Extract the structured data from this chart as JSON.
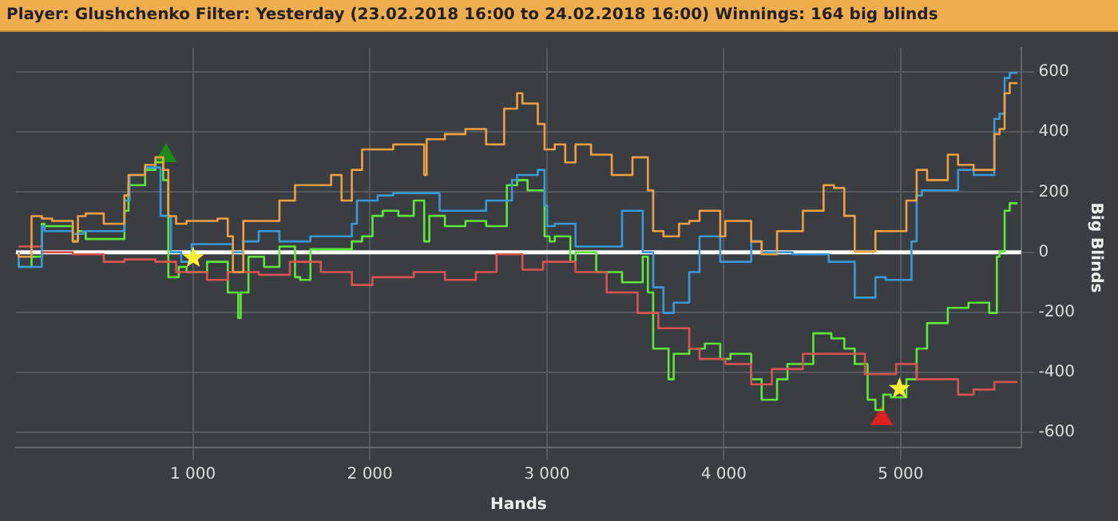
{
  "chart_data": {
    "type": "step",
    "title": "Player: Glushchenko Filter: Yesterday (23.02.2018 16:00 to 24.02.2018 16:00) Winnings: 164 big blinds",
    "xlabel": "Hands",
    "ylabel": "Big Blinds",
    "xlim": [
      0,
      5680
    ],
    "ylim": [
      -650,
      680
    ],
    "xticks": [
      {
        "value": 1000,
        "label": "1 000"
      },
      {
        "value": 2000,
        "label": "2 000"
      },
      {
        "value": 3000,
        "label": "3 000"
      },
      {
        "value": 4000,
        "label": "4 000"
      },
      {
        "value": 5000,
        "label": "5 000"
      }
    ],
    "yticks": [
      -600,
      -400,
      -200,
      0,
      200,
      400,
      600
    ],
    "grid": true,
    "legend": false,
    "ref_lines": [
      {
        "axis": "y",
        "value": 0,
        "color": "#ffffff"
      }
    ],
    "series": [
      {
        "color": "#f0a040",
        "x": [
          15,
          88,
          146,
          204,
          321,
          350,
          394,
          496,
          613,
          636,
          730,
          788,
          832,
          861,
          905,
          964,
          1139,
          1197,
          1226,
          1285,
          1372,
          1489,
          1577,
          1635,
          1781,
          1840,
          1898,
          1956,
          2132,
          2307,
          2321,
          2424,
          2540,
          2657,
          2759,
          2832,
          2862,
          2949,
          2987,
          3045,
          3104,
          3162,
          3250,
          3367,
          3484,
          3571,
          3601,
          3659,
          3747,
          3805,
          3863,
          3980,
          4009,
          4155,
          4214,
          4301,
          4447,
          4564,
          4623,
          4681,
          4740,
          4857,
          4915,
          5032,
          5090,
          5149,
          5266,
          5324,
          5412,
          5529,
          5558,
          5587,
          5616,
          5660
        ],
        "values": [
          0,
          -15,
          120,
          112,
          104,
          36,
          120,
          129,
          95,
          189,
          257,
          291,
          316,
          274,
          120,
          95,
          104,
          112,
          53,
          -66,
          104,
          104,
          172,
          223,
          223,
          257,
          172,
          274,
          342,
          359,
          257,
          376,
          393,
          410,
          359,
          478,
          529,
          495,
          427,
          342,
          359,
          299,
          359,
          325,
          257,
          316,
          206,
          70,
          53,
          95,
          104,
          138,
          53,
          104,
          36,
          -7,
          70,
          138,
          223,
          214,
          121,
          2,
          70,
          70,
          172,
          274,
          240,
          325,
          291,
          274,
          393,
          410,
          529,
          563
        ]
      },
      {
        "color": "#3a9ad9",
        "x": [
          15,
          58,
          146,
          161,
          321,
          380,
          613,
          642,
          730,
          817,
          876,
          934,
          993,
          1080,
          1226,
          1285,
          1372,
          1489,
          1577,
          1664,
          1694,
          1898,
          1927,
          2044,
          2132,
          2248,
          2394,
          2424,
          2540,
          2657,
          2803,
          2832,
          2949,
          2987,
          3002,
          3045,
          3162,
          3177,
          3425,
          3542,
          3601,
          3659,
          3717,
          3805,
          3863,
          3980,
          4038,
          4155,
          4214,
          4389,
          4593,
          4740,
          4857,
          4915,
          5061,
          5090,
          5120,
          5207,
          5324,
          5412,
          5529,
          5558,
          5587,
          5616,
          5660
        ],
        "values": [
          0,
          -49,
          -49,
          87,
          70,
          61,
          70,
          172,
          257,
          282,
          121,
          0,
          -32,
          27,
          27,
          0,
          36,
          70,
          36,
          36,
          53,
          53,
          95,
          172,
          189,
          197,
          197,
          138,
          138,
          138,
          172,
          240,
          257,
          274,
          155,
          87,
          95,
          19,
          19,
          138,
          0,
          -117,
          -202,
          -168,
          -66,
          53,
          -32,
          -32,
          36,
          0,
          -7,
          -32,
          -151,
          -83,
          -92,
          36,
          189,
          206,
          206,
          274,
          257,
          444,
          461,
          580,
          597
        ]
      },
      {
        "color": "#d9534f",
        "x": [
          15,
          146,
          321,
          496,
          613,
          788,
          905,
          1080,
          1197,
          1372,
          1548,
          1723,
          1898,
          2015,
          2248,
          2424,
          2599,
          2716,
          2862,
          2979,
          3162,
          3338,
          3513,
          3630,
          3805,
          3863,
          4009,
          4155,
          4272,
          4447,
          4623,
          4798,
          4974,
          5090,
          5149,
          5324,
          5412,
          5529,
          5660
        ],
        "values": [
          19,
          19,
          0,
          -7,
          -32,
          -24,
          -32,
          -66,
          -92,
          -66,
          -75,
          -32,
          -66,
          -109,
          -83,
          -66,
          -92,
          -66,
          -7,
          -58,
          -32,
          -66,
          -134,
          -202,
          -253,
          -321,
          -355,
          -372,
          -440,
          -389,
          -338,
          -338,
          -406,
          -372,
          -423,
          -423,
          -474,
          -457,
          -432
        ]
      },
      {
        "color": "#5ee83a",
        "x": [
          15,
          88,
          146,
          161,
          321,
          350,
          394,
          613,
          636,
          730,
          788,
          832,
          861,
          920,
          964,
          1080,
          1197,
          1256,
          1270,
          1314,
          1402,
          1489,
          1577,
          1606,
          1664,
          1723,
          1898,
          1956,
          2015,
          2073,
          2161,
          2248,
          2307,
          2336,
          2424,
          2540,
          2657,
          2774,
          2832,
          2891,
          2949,
          2987,
          3016,
          3045,
          3133,
          3162,
          3279,
          3425,
          3542,
          3571,
          3601,
          3688,
          3717,
          3805,
          3893,
          3980,
          4038,
          4155,
          4214,
          4301,
          4360,
          4506,
          4608,
          4681,
          4740,
          4813,
          4857,
          4901,
          4944,
          5032,
          5090,
          5149,
          5266,
          5383,
          5500,
          5543,
          5558,
          5587,
          5616,
          5660
        ],
        "values": [
          -32,
          -49,
          -15,
          95,
          87,
          36,
          70,
          44,
          138,
          223,
          274,
          299,
          240,
          -83,
          -49,
          -66,
          -32,
          -134,
          -219,
          -134,
          -15,
          -49,
          19,
          -83,
          -92,
          10,
          10,
          36,
          53,
          121,
          138,
          121,
          172,
          36,
          121,
          87,
          104,
          87,
          223,
          240,
          206,
          206,
          53,
          36,
          53,
          -32,
          0,
          -66,
          -100,
          -15,
          -134,
          -321,
          -423,
          -338,
          -321,
          -304,
          -355,
          -338,
          -423,
          -491,
          -423,
          -372,
          -270,
          -287,
          -321,
          -372,
          -491,
          -525,
          -474,
          -483,
          -423,
          -321,
          -236,
          -185,
          -168,
          -202,
          -15,
          2,
          138,
          163
        ]
      },
      {
        "type": "scatter",
        "marker": "triangle",
        "color": "#1a8a1a",
        "x": [
          847
        ],
        "values": [
          321
        ]
      },
      {
        "type": "scatter",
        "marker": "star",
        "color": "#ffee33",
        "x": [
          1002,
          4993
        ],
        "values": [
          -19,
          -454
        ]
      },
      {
        "type": "scatter",
        "marker": "triangle",
        "color": "#e02020",
        "x": [
          4893
        ],
        "values": [
          -554
        ]
      }
    ]
  }
}
